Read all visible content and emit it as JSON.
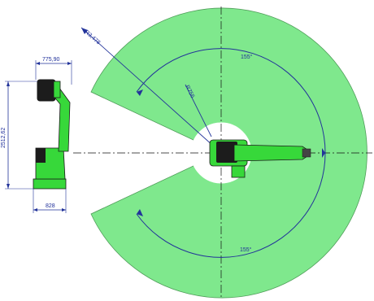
{
  "drawing": {
    "side_view": {
      "width_top": "775,90",
      "height": "2512,62",
      "base_width": "828"
    },
    "top_view": {
      "outer_radius": "R3,478",
      "inner_radius": "R756",
      "angle_top": "155°",
      "angle_bottom": "155°"
    }
  },
  "colors": {
    "work_area": "#7fe88d",
    "robot_green": "#37d83a",
    "dimension_blue": "#22339a",
    "outline": "#1a1a1a"
  }
}
